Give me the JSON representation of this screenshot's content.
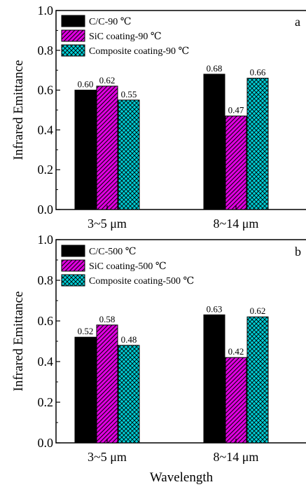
{
  "figure": {
    "xlabel": "Wavelength",
    "colors": {
      "series1": "#000000",
      "series2": "#e000e0",
      "series3": "#00d0d8",
      "hatch": "#000000",
      "axis": "#000000"
    }
  },
  "chart_data": [
    {
      "type": "bar",
      "panel_label": "a",
      "categories": [
        "3~5 μm",
        "8~14 μm"
      ],
      "series": [
        {
          "name": "C/C-90 ℃",
          "values": [
            0.6,
            0.68
          ],
          "value_labels": [
            "0.60",
            "0.68"
          ],
          "pattern": "solid"
        },
        {
          "name": "SiC coating-90 ℃",
          "values": [
            0.62,
            0.47
          ],
          "value_labels": [
            "0.62",
            "0.47"
          ],
          "pattern": "diagonal-hatch"
        },
        {
          "name": "Composite coating-90 ℃",
          "values": [
            0.55,
            0.66
          ],
          "value_labels": [
            "0.55",
            "0.66"
          ],
          "pattern": "cross-hatch"
        }
      ],
      "ylabel": "Infrared Emittance",
      "xlabel": "",
      "ylim": [
        0.0,
        1.0
      ],
      "yticks": [
        "0.0",
        "0.2",
        "0.4",
        "0.6",
        "0.8",
        "1.0"
      ],
      "legend_position": "top-left",
      "grid": false
    },
    {
      "type": "bar",
      "panel_label": "b",
      "categories": [
        "3~5 μm",
        "8~14 μm"
      ],
      "series": [
        {
          "name": "C/C-500 ℃",
          "values": [
            0.52,
            0.63
          ],
          "value_labels": [
            "0.52",
            "0.63"
          ],
          "pattern": "solid"
        },
        {
          "name": "SiC coating-500 ℃",
          "values": [
            0.58,
            0.42
          ],
          "value_labels": [
            "0.58",
            "0.42"
          ],
          "pattern": "diagonal-hatch"
        },
        {
          "name": "Composite coating-500 ℃",
          "values": [
            0.48,
            0.62
          ],
          "value_labels": [
            "0.48",
            "0.62"
          ],
          "pattern": "cross-hatch"
        }
      ],
      "ylabel": "Infrared Emittance",
      "xlabel": "Wavelength",
      "ylim": [
        0.0,
        1.0
      ],
      "yticks": [
        "0.0",
        "0.2",
        "0.4",
        "0.6",
        "0.8",
        "1.0"
      ],
      "legend_position": "top-left",
      "grid": false
    }
  ]
}
